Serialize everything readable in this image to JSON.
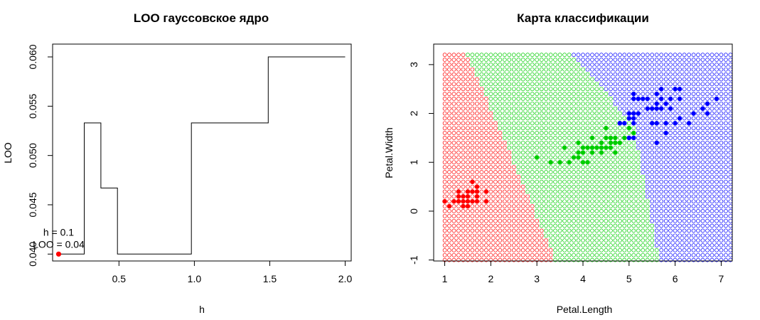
{
  "chart_data": [
    {
      "type": "line",
      "title": "LOO гауссовское ядро",
      "xlabel": "h",
      "ylabel": "LOO",
      "xlim": [
        0.06,
        2.04
      ],
      "ylim": [
        0.0393,
        0.0613
      ],
      "xticks": [
        "0.5",
        "1.0",
        "1.5",
        "2.0"
      ],
      "yticks": [
        "0.040",
        "0.045",
        "0.050",
        "0.055",
        "0.060"
      ],
      "step_line": [
        [
          0.1,
          0.04
        ],
        [
          0.27,
          0.04
        ],
        [
          0.27,
          0.0533
        ],
        [
          0.38,
          0.0533
        ],
        [
          0.38,
          0.0467
        ],
        [
          0.49,
          0.0467
        ],
        [
          0.49,
          0.04
        ],
        [
          0.98,
          0.04
        ],
        [
          0.98,
          0.0533
        ],
        [
          1.49,
          0.0533
        ],
        [
          1.49,
          0.06
        ],
        [
          2.0,
          0.06
        ]
      ],
      "highlight_point": {
        "x": 0.1,
        "y": 0.04,
        "color": "#ff0000"
      },
      "annotation_lines": [
        "h = 0.1",
        "LOO = 0.04"
      ],
      "annotation_color": "#ff0000",
      "grid": false
    },
    {
      "type": "scatter",
      "title": "Карта классификации",
      "xlabel": "Petal.Length",
      "ylabel": "Petal.Width",
      "xlim": [
        0.76,
        7.24
      ],
      "ylim": [
        -1.02,
        3.42
      ],
      "xticks": [
        "1",
        "2",
        "3",
        "4",
        "5",
        "6",
        "7"
      ],
      "yticks": [
        "-1",
        "0",
        "1",
        "2",
        "3"
      ],
      "grid": false,
      "classes": [
        {
          "color": "#ff0000"
        },
        {
          "color": "#00cd00"
        },
        {
          "color": "#0000ff"
        }
      ],
      "background_grid": {
        "x_range": [
          1.0,
          7.2
        ],
        "y_range": [
          -1.0,
          3.2
        ],
        "step": 0.1,
        "boundary_1_2": [
          [
            1.5,
            3.2
          ],
          [
            3.4,
            -1.0
          ]
        ],
        "boundary_2_3": [
          [
            3.8,
            3.2
          ],
          [
            5.1,
            1.75
          ],
          [
            5.65,
            -1.0
          ]
        ]
      },
      "series": [
        {
          "class_index": 0,
          "points": [
            [
              1.0,
              0.2
            ],
            [
              1.1,
              0.1
            ],
            [
              1.2,
              0.2
            ],
            [
              1.3,
              0.2
            ],
            [
              1.3,
              0.3
            ],
            [
              1.3,
              0.4
            ],
            [
              1.4,
              0.1
            ],
            [
              1.4,
              0.2
            ],
            [
              1.4,
              0.3
            ],
            [
              1.5,
              0.1
            ],
            [
              1.5,
              0.2
            ],
            [
              1.5,
              0.3
            ],
            [
              1.5,
              0.4
            ],
            [
              1.6,
              0.2
            ],
            [
              1.6,
              0.4
            ],
            [
              1.6,
              0.6
            ],
            [
              1.7,
              0.2
            ],
            [
              1.7,
              0.3
            ],
            [
              1.7,
              0.4
            ],
            [
              1.7,
              0.5
            ],
            [
              1.9,
              0.2
            ],
            [
              1.9,
              0.4
            ]
          ]
        },
        {
          "class_index": 1,
          "points": [
            [
              3.0,
              1.1
            ],
            [
              3.3,
              1.0
            ],
            [
              3.5,
              1.0
            ],
            [
              3.6,
              1.3
            ],
            [
              3.7,
              1.0
            ],
            [
              3.8,
              1.1
            ],
            [
              3.9,
              1.1
            ],
            [
              3.9,
              1.2
            ],
            [
              3.9,
              1.4
            ],
            [
              4.0,
              1.0
            ],
            [
              4.0,
              1.2
            ],
            [
              4.0,
              1.3
            ],
            [
              4.1,
              1.0
            ],
            [
              4.1,
              1.3
            ],
            [
              4.2,
              1.2
            ],
            [
              4.2,
              1.3
            ],
            [
              4.2,
              1.5
            ],
            [
              4.3,
              1.3
            ],
            [
              4.4,
              1.2
            ],
            [
              4.4,
              1.3
            ],
            [
              4.4,
              1.4
            ],
            [
              4.5,
              1.3
            ],
            [
              4.5,
              1.5
            ],
            [
              4.5,
              1.7
            ],
            [
              4.6,
              1.3
            ],
            [
              4.6,
              1.4
            ],
            [
              4.6,
              1.5
            ],
            [
              4.7,
              1.2
            ],
            [
              4.7,
              1.4
            ],
            [
              4.7,
              1.5
            ],
            [
              4.8,
              1.4
            ],
            [
              4.8,
              1.8
            ],
            [
              4.9,
              1.5
            ],
            [
              5.0,
              1.7
            ],
            [
              5.1,
              1.6
            ]
          ]
        },
        {
          "class_index": 2,
          "points": [
            [
              4.8,
              1.8
            ],
            [
              4.9,
              1.8
            ],
            [
              5.0,
              1.5
            ],
            [
              5.0,
              1.9
            ],
            [
              5.0,
              2.0
            ],
            [
              5.1,
              1.5
            ],
            [
              5.1,
              1.8
            ],
            [
              5.1,
              1.9
            ],
            [
              5.1,
              2.0
            ],
            [
              5.1,
              2.3
            ],
            [
              5.1,
              2.4
            ],
            [
              5.2,
              2.0
            ],
            [
              5.2,
              2.3
            ],
            [
              5.3,
              2.3
            ],
            [
              5.4,
              2.1
            ],
            [
              5.4,
              2.3
            ],
            [
              5.5,
              1.8
            ],
            [
              5.5,
              2.1
            ],
            [
              5.6,
              1.8
            ],
            [
              5.6,
              2.1
            ],
            [
              5.6,
              2.2
            ],
            [
              5.6,
              2.4
            ],
            [
              5.7,
              2.1
            ],
            [
              5.7,
              2.3
            ],
            [
              5.7,
              2.5
            ],
            [
              5.8,
              1.6
            ],
            [
              5.8,
              1.8
            ],
            [
              5.8,
              2.2
            ],
            [
              5.9,
              2.1
            ],
            [
              5.9,
              2.3
            ],
            [
              6.0,
              1.8
            ],
            [
              6.0,
              2.5
            ],
            [
              6.1,
              1.9
            ],
            [
              6.1,
              2.3
            ],
            [
              6.1,
              2.5
            ],
            [
              6.3,
              1.8
            ],
            [
              6.4,
              2.0
            ],
            [
              6.6,
              2.1
            ],
            [
              6.7,
              2.0
            ],
            [
              6.7,
              2.2
            ],
            [
              6.9,
              2.3
            ],
            [
              5.6,
              1.4
            ]
          ]
        }
      ]
    }
  ]
}
